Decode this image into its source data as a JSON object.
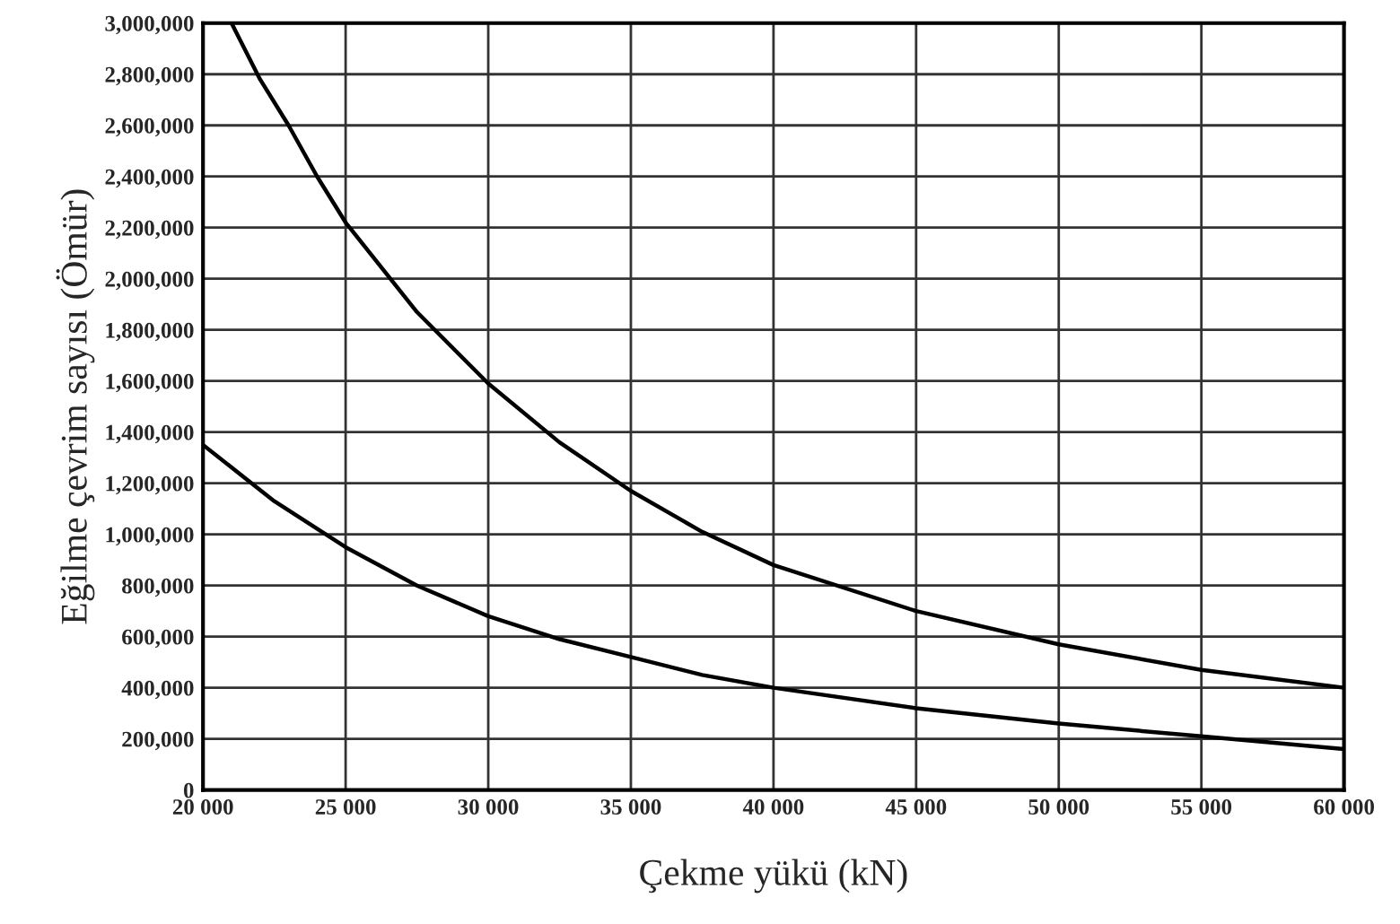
{
  "chart_data": {
    "type": "line",
    "xlabel": "Çekme yükü (kN)",
    "ylabel": "Eğilme çevrim sayısı (Ömür)",
    "series": [
      {
        "color": "#000000",
        "x": [
          21000,
          22000,
          23000,
          24000,
          25000,
          27500,
          30000,
          32500,
          35000,
          37500,
          40000,
          45000,
          50000,
          55000,
          60000
        ],
        "values": [
          3000000,
          2780000,
          2600000,
          2400000,
          2220000,
          1870000,
          1590000,
          1360000,
          1170000,
          1010000,
          880000,
          700000,
          570000,
          470000,
          400000
        ]
      },
      {
        "color": "#000000",
        "x": [
          20000,
          22500,
          25000,
          27500,
          30000,
          32500,
          35000,
          37500,
          40000,
          45000,
          50000,
          55000,
          60000
        ],
        "values": [
          1350000,
          1130000,
          950000,
          800000,
          680000,
          590000,
          520000,
          450000,
          400000,
          320000,
          260000,
          210000,
          160000
        ]
      }
    ],
    "xlim": [
      20000,
      60000
    ],
    "ylim": [
      0,
      3000000
    ],
    "xticks": [
      {
        "value": 20000,
        "label": "20 000"
      },
      {
        "value": 25000,
        "label": "25 000"
      },
      {
        "value": 30000,
        "label": "30 000"
      },
      {
        "value": 35000,
        "label": "35 000"
      },
      {
        "value": 40000,
        "label": "40 000"
      },
      {
        "value": 45000,
        "label": "45 000"
      },
      {
        "value": 50000,
        "label": "50 000"
      },
      {
        "value": 55000,
        "label": "55 000"
      },
      {
        "value": 60000,
        "label": "60 000"
      }
    ],
    "yticks": [
      0,
      {
        "value": 200000,
        "label": "200,000"
      },
      {
        "value": 400000,
        "label": "400,000"
      },
      {
        "value": 600000,
        "label": "600,000"
      },
      {
        "value": 800000,
        "label": "800,000"
      },
      {
        "value": 1000000,
        "label": "1,000,000"
      },
      {
        "value": 1200000,
        "label": "1,200,000"
      },
      {
        "value": 1400000,
        "label": "1,400,000"
      },
      {
        "value": 1600000,
        "label": "1,600,000"
      },
      {
        "value": 1800000,
        "label": "1,800,000"
      },
      {
        "value": 2000000,
        "label": "2,000,000"
      },
      {
        "value": 2200000,
        "label": "2,200,000"
      },
      {
        "value": 2400000,
        "label": "2,400,000"
      },
      {
        "value": 2600000,
        "label": "2,600,000"
      },
      {
        "value": 2800000,
        "label": "2,800,000"
      },
      {
        "value": 3000000,
        "label": "3,000,000"
      }
    ],
    "grid": true,
    "legend": false
  }
}
